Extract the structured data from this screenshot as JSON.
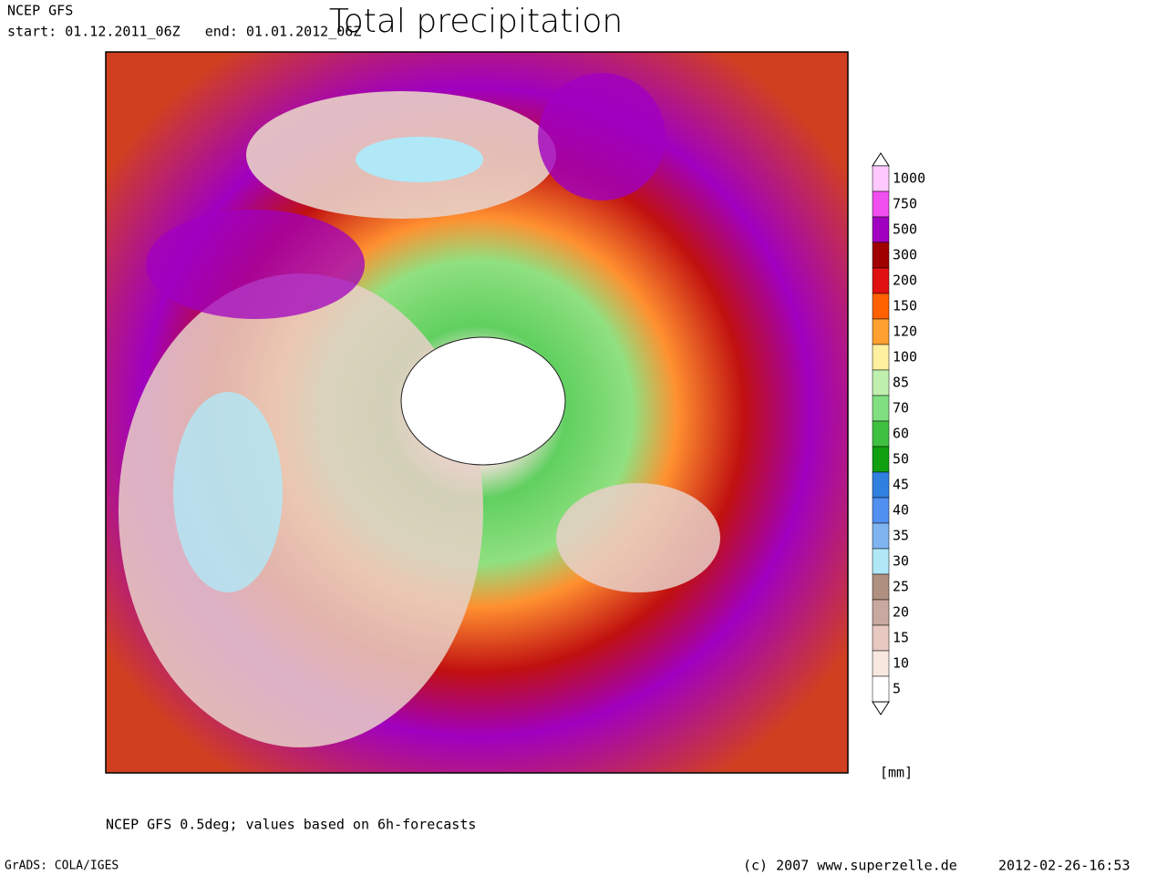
{
  "header": {
    "source": "NCEP GFS",
    "period": "start: 01.12.2011_06Z   end: 01.01.2012_06Z",
    "title": "Total precipitation"
  },
  "legend": {
    "unit": "[mm]",
    "levels": [
      {
        "label": "1000",
        "color": "#ffc8ff"
      },
      {
        "label": "750",
        "color": "#f050f0"
      },
      {
        "label": "500",
        "color": "#a000c0"
      },
      {
        "label": "300",
        "color": "#a00000"
      },
      {
        "label": "200",
        "color": "#e01010"
      },
      {
        "label": "150",
        "color": "#ff6000"
      },
      {
        "label": "120",
        "color": "#ffa030"
      },
      {
        "label": "100",
        "color": "#fff0a0"
      },
      {
        "label": "85",
        "color": "#c0f0b0"
      },
      {
        "label": "70",
        "color": "#80e080"
      },
      {
        "label": "60",
        "color": "#40c040"
      },
      {
        "label": "50",
        "color": "#10a010"
      },
      {
        "label": "45",
        "color": "#3080e0"
      },
      {
        "label": "40",
        "color": "#5090f0"
      },
      {
        "label": "35",
        "color": "#80b4f0"
      },
      {
        "label": "30",
        "color": "#b0e8f8"
      },
      {
        "label": "25",
        "color": "#b09080"
      },
      {
        "label": "20",
        "color": "#c8a8a0"
      },
      {
        "label": "15",
        "color": "#e8c8c0"
      },
      {
        "label": "10",
        "color": "#f8e8e0"
      },
      {
        "label": "5",
        "color": "#ffffff"
      }
    ]
  },
  "footer": {
    "note": "NCEP GFS 0.5deg; values based on 6h-forecasts",
    "software": "GrADS: COLA/IGES",
    "copyright": "(c) 2007 www.superzelle.de",
    "timestamp": "2012-02-26-16:53"
  }
}
